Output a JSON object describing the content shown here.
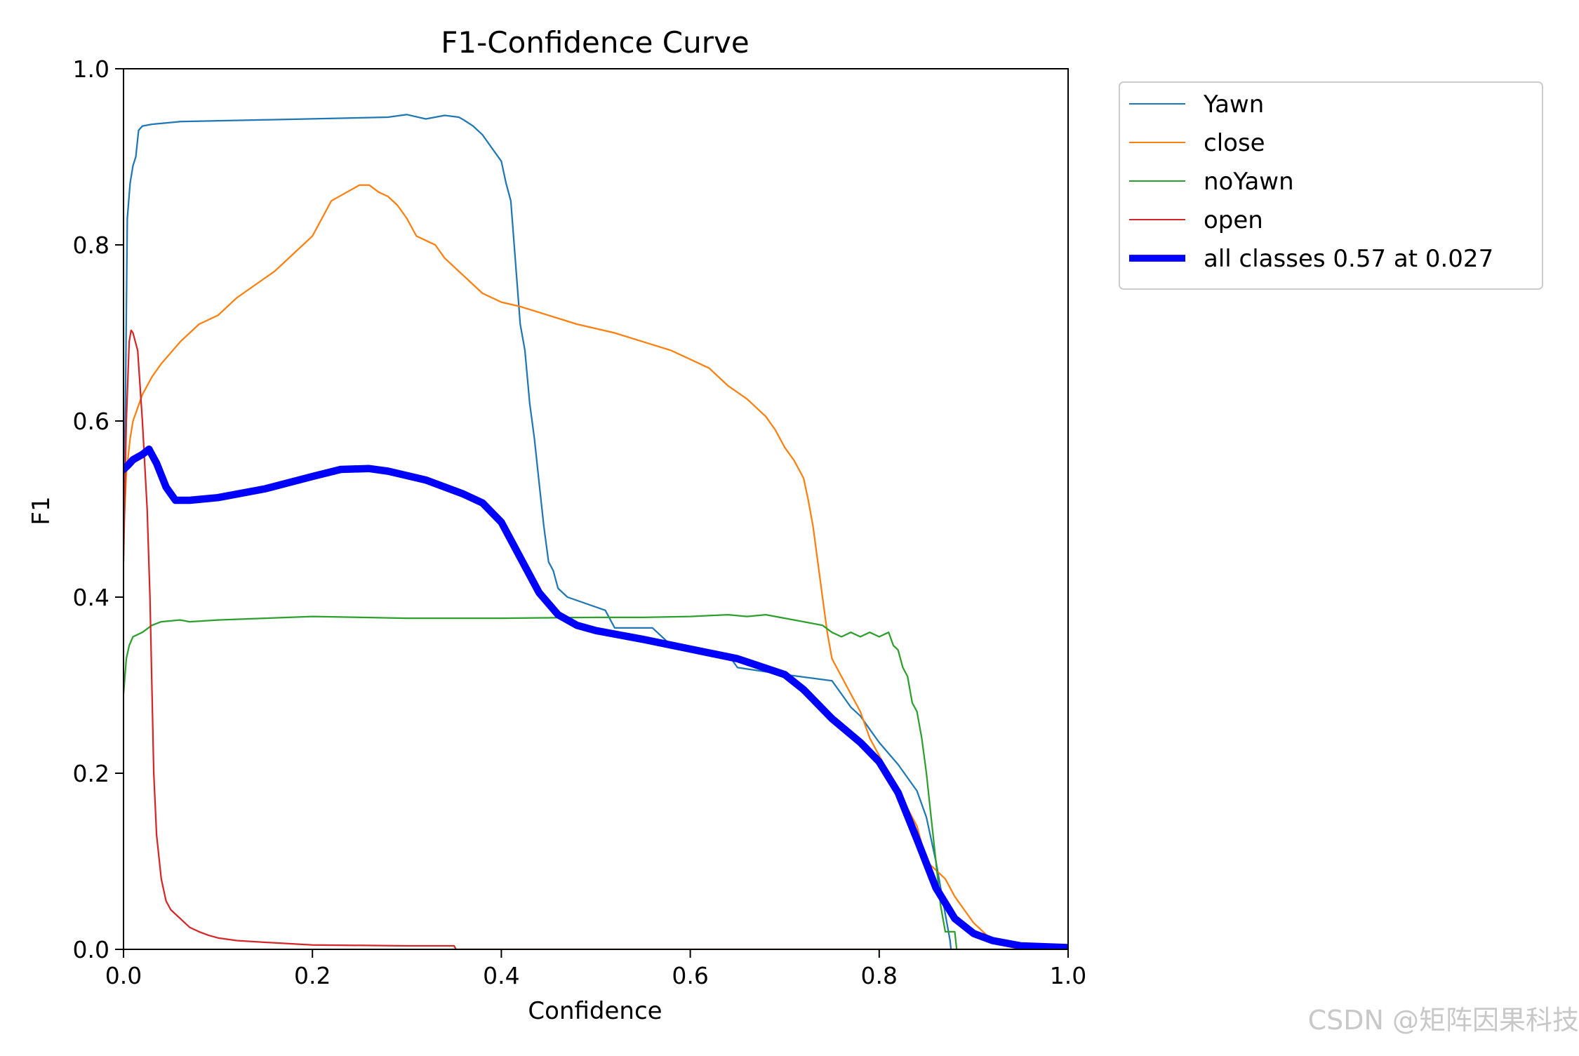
{
  "watermark": "CSDN @矩阵因果科技",
  "chart_data": {
    "type": "line",
    "title": "F1-Confidence Curve",
    "xlabel": "Confidence",
    "ylabel": "F1",
    "xlim": [
      0,
      1
    ],
    "ylim": [
      0,
      1
    ],
    "xticks": [
      "0.0",
      "0.2",
      "0.4",
      "0.6",
      "0.8",
      "1.0"
    ],
    "yticks": [
      "0.0",
      "0.2",
      "0.4",
      "0.6",
      "0.8",
      "1.0"
    ],
    "grid": false,
    "legend_position": "outside-top-right",
    "series": [
      {
        "name": "Yawn",
        "color": "#1f77b4",
        "width": 1.5,
        "points": [
          [
            0,
            0.47
          ],
          [
            0.002,
            0.62
          ],
          [
            0.004,
            0.83
          ],
          [
            0.007,
            0.87
          ],
          [
            0.01,
            0.89
          ],
          [
            0.013,
            0.9
          ],
          [
            0.016,
            0.93
          ],
          [
            0.02,
            0.935
          ],
          [
            0.03,
            0.937
          ],
          [
            0.06,
            0.94
          ],
          [
            0.15,
            0.942
          ],
          [
            0.28,
            0.945
          ],
          [
            0.3,
            0.948
          ],
          [
            0.32,
            0.943
          ],
          [
            0.34,
            0.947
          ],
          [
            0.355,
            0.945
          ],
          [
            0.36,
            0.942
          ],
          [
            0.37,
            0.935
          ],
          [
            0.38,
            0.925
          ],
          [
            0.39,
            0.91
          ],
          [
            0.4,
            0.895
          ],
          [
            0.405,
            0.87
          ],
          [
            0.41,
            0.85
          ],
          [
            0.415,
            0.78
          ],
          [
            0.42,
            0.71
          ],
          [
            0.425,
            0.68
          ],
          [
            0.43,
            0.62
          ],
          [
            0.435,
            0.58
          ],
          [
            0.44,
            0.53
          ],
          [
            0.445,
            0.48
          ],
          [
            0.45,
            0.44
          ],
          [
            0.455,
            0.43
          ],
          [
            0.46,
            0.41
          ],
          [
            0.47,
            0.4
          ],
          [
            0.51,
            0.385
          ],
          [
            0.52,
            0.365
          ],
          [
            0.56,
            0.365
          ],
          [
            0.58,
            0.345
          ],
          [
            0.64,
            0.335
          ],
          [
            0.65,
            0.32
          ],
          [
            0.7,
            0.312
          ],
          [
            0.75,
            0.305
          ],
          [
            0.76,
            0.29
          ],
          [
            0.77,
            0.275
          ],
          [
            0.78,
            0.265
          ],
          [
            0.79,
            0.25
          ],
          [
            0.8,
            0.235
          ],
          [
            0.82,
            0.21
          ],
          [
            0.84,
            0.18
          ],
          [
            0.85,
            0.15
          ],
          [
            0.86,
            0.1
          ],
          [
            0.87,
            0.04
          ],
          [
            0.875,
            0.01
          ],
          [
            0.876,
            0.0
          ]
        ]
      },
      {
        "name": "close",
        "color": "#ff7f0e",
        "width": 1.5,
        "points": [
          [
            0,
            0.47
          ],
          [
            0.003,
            0.54
          ],
          [
            0.007,
            0.58
          ],
          [
            0.01,
            0.6
          ],
          [
            0.02,
            0.63
          ],
          [
            0.03,
            0.65
          ],
          [
            0.04,
            0.665
          ],
          [
            0.06,
            0.69
          ],
          [
            0.08,
            0.71
          ],
          [
            0.1,
            0.72
          ],
          [
            0.12,
            0.74
          ],
          [
            0.14,
            0.755
          ],
          [
            0.16,
            0.77
          ],
          [
            0.18,
            0.79
          ],
          [
            0.2,
            0.81
          ],
          [
            0.21,
            0.83
          ],
          [
            0.22,
            0.85
          ],
          [
            0.24,
            0.862
          ],
          [
            0.25,
            0.868
          ],
          [
            0.26,
            0.868
          ],
          [
            0.27,
            0.86
          ],
          [
            0.28,
            0.855
          ],
          [
            0.29,
            0.845
          ],
          [
            0.3,
            0.83
          ],
          [
            0.31,
            0.81
          ],
          [
            0.32,
            0.805
          ],
          [
            0.33,
            0.8
          ],
          [
            0.34,
            0.785
          ],
          [
            0.35,
            0.775
          ],
          [
            0.36,
            0.765
          ],
          [
            0.37,
            0.755
          ],
          [
            0.38,
            0.745
          ],
          [
            0.4,
            0.735
          ],
          [
            0.42,
            0.73
          ],
          [
            0.45,
            0.72
          ],
          [
            0.48,
            0.71
          ],
          [
            0.52,
            0.7
          ],
          [
            0.55,
            0.69
          ],
          [
            0.58,
            0.68
          ],
          [
            0.6,
            0.67
          ],
          [
            0.62,
            0.66
          ],
          [
            0.64,
            0.64
          ],
          [
            0.66,
            0.625
          ],
          [
            0.68,
            0.605
          ],
          [
            0.69,
            0.59
          ],
          [
            0.7,
            0.57
          ],
          [
            0.71,
            0.555
          ],
          [
            0.72,
            0.535
          ],
          [
            0.725,
            0.51
          ],
          [
            0.73,
            0.48
          ],
          [
            0.735,
            0.44
          ],
          [
            0.74,
            0.4
          ],
          [
            0.745,
            0.36
          ],
          [
            0.75,
            0.33
          ],
          [
            0.76,
            0.31
          ],
          [
            0.77,
            0.29
          ],
          [
            0.78,
            0.27
          ],
          [
            0.79,
            0.24
          ],
          [
            0.8,
            0.22
          ],
          [
            0.81,
            0.2
          ],
          [
            0.82,
            0.18
          ],
          [
            0.83,
            0.16
          ],
          [
            0.84,
            0.14
          ],
          [
            0.85,
            0.1
          ],
          [
            0.86,
            0.09
          ],
          [
            0.87,
            0.08
          ],
          [
            0.88,
            0.06
          ],
          [
            0.89,
            0.045
          ],
          [
            0.9,
            0.03
          ],
          [
            0.91,
            0.02
          ],
          [
            0.92,
            0.01
          ],
          [
            0.93,
            0.005
          ],
          [
            0.95,
            0.0
          ],
          [
            1.0,
            0.0
          ]
        ]
      },
      {
        "name": "noYawn",
        "color": "#2ca02c",
        "width": 1.5,
        "points": [
          [
            0,
            0.29
          ],
          [
            0.003,
            0.33
          ],
          [
            0.006,
            0.345
          ],
          [
            0.01,
            0.355
          ],
          [
            0.02,
            0.36
          ],
          [
            0.03,
            0.368
          ],
          [
            0.04,
            0.372
          ],
          [
            0.06,
            0.374
          ],
          [
            0.07,
            0.372
          ],
          [
            0.1,
            0.374
          ],
          [
            0.15,
            0.376
          ],
          [
            0.2,
            0.378
          ],
          [
            0.3,
            0.376
          ],
          [
            0.4,
            0.376
          ],
          [
            0.5,
            0.377
          ],
          [
            0.55,
            0.377
          ],
          [
            0.6,
            0.378
          ],
          [
            0.64,
            0.38
          ],
          [
            0.66,
            0.378
          ],
          [
            0.68,
            0.38
          ],
          [
            0.7,
            0.376
          ],
          [
            0.72,
            0.372
          ],
          [
            0.74,
            0.368
          ],
          [
            0.75,
            0.36
          ],
          [
            0.76,
            0.355
          ],
          [
            0.77,
            0.36
          ],
          [
            0.78,
            0.355
          ],
          [
            0.79,
            0.36
          ],
          [
            0.8,
            0.355
          ],
          [
            0.81,
            0.36
          ],
          [
            0.815,
            0.345
          ],
          [
            0.82,
            0.34
          ],
          [
            0.825,
            0.32
          ],
          [
            0.83,
            0.31
          ],
          [
            0.835,
            0.28
          ],
          [
            0.84,
            0.27
          ],
          [
            0.845,
            0.24
          ],
          [
            0.85,
            0.2
          ],
          [
            0.855,
            0.15
          ],
          [
            0.86,
            0.1
          ],
          [
            0.865,
            0.05
          ],
          [
            0.87,
            0.02
          ],
          [
            0.88,
            0.02
          ],
          [
            0.882,
            0.0
          ]
        ]
      },
      {
        "name": "open",
        "color": "#d62728",
        "width": 1.5,
        "points": [
          [
            0,
            0.44
          ],
          [
            0.003,
            0.6
          ],
          [
            0.006,
            0.69
          ],
          [
            0.008,
            0.703
          ],
          [
            0.01,
            0.7
          ],
          [
            0.015,
            0.68
          ],
          [
            0.02,
            0.6
          ],
          [
            0.025,
            0.5
          ],
          [
            0.028,
            0.4
          ],
          [
            0.03,
            0.3
          ],
          [
            0.032,
            0.2
          ],
          [
            0.035,
            0.13
          ],
          [
            0.04,
            0.08
          ],
          [
            0.045,
            0.055
          ],
          [
            0.05,
            0.045
          ],
          [
            0.06,
            0.035
          ],
          [
            0.07,
            0.025
          ],
          [
            0.08,
            0.02
          ],
          [
            0.09,
            0.016
          ],
          [
            0.1,
            0.013
          ],
          [
            0.12,
            0.01
          ],
          [
            0.15,
            0.008
          ],
          [
            0.2,
            0.005
          ],
          [
            0.3,
            0.004
          ],
          [
            0.35,
            0.004
          ],
          [
            0.352,
            0.0
          ],
          [
            1.0,
            0.0
          ]
        ]
      },
      {
        "name": "all classes 0.57 at 0.027",
        "color": "#0000ff",
        "width": 7,
        "points": [
          [
            0,
            0.545
          ],
          [
            0.005,
            0.55
          ],
          [
            0.01,
            0.556
          ],
          [
            0.02,
            0.562
          ],
          [
            0.027,
            0.568
          ],
          [
            0.035,
            0.552
          ],
          [
            0.045,
            0.525
          ],
          [
            0.055,
            0.51
          ],
          [
            0.07,
            0.51
          ],
          [
            0.1,
            0.513
          ],
          [
            0.15,
            0.523
          ],
          [
            0.2,
            0.537
          ],
          [
            0.23,
            0.545
          ],
          [
            0.26,
            0.546
          ],
          [
            0.28,
            0.543
          ],
          [
            0.32,
            0.533
          ],
          [
            0.36,
            0.517
          ],
          [
            0.38,
            0.507
          ],
          [
            0.4,
            0.485
          ],
          [
            0.42,
            0.445
          ],
          [
            0.44,
            0.405
          ],
          [
            0.46,
            0.38
          ],
          [
            0.48,
            0.368
          ],
          [
            0.5,
            0.362
          ],
          [
            0.55,
            0.352
          ],
          [
            0.6,
            0.341
          ],
          [
            0.65,
            0.33
          ],
          [
            0.7,
            0.312
          ],
          [
            0.72,
            0.295
          ],
          [
            0.75,
            0.262
          ],
          [
            0.78,
            0.235
          ],
          [
            0.8,
            0.213
          ],
          [
            0.82,
            0.178
          ],
          [
            0.84,
            0.125
          ],
          [
            0.86,
            0.07
          ],
          [
            0.88,
            0.035
          ],
          [
            0.9,
            0.018
          ],
          [
            0.92,
            0.01
          ],
          [
            0.95,
            0.004
          ],
          [
            1.0,
            0.002
          ]
        ]
      }
    ]
  }
}
